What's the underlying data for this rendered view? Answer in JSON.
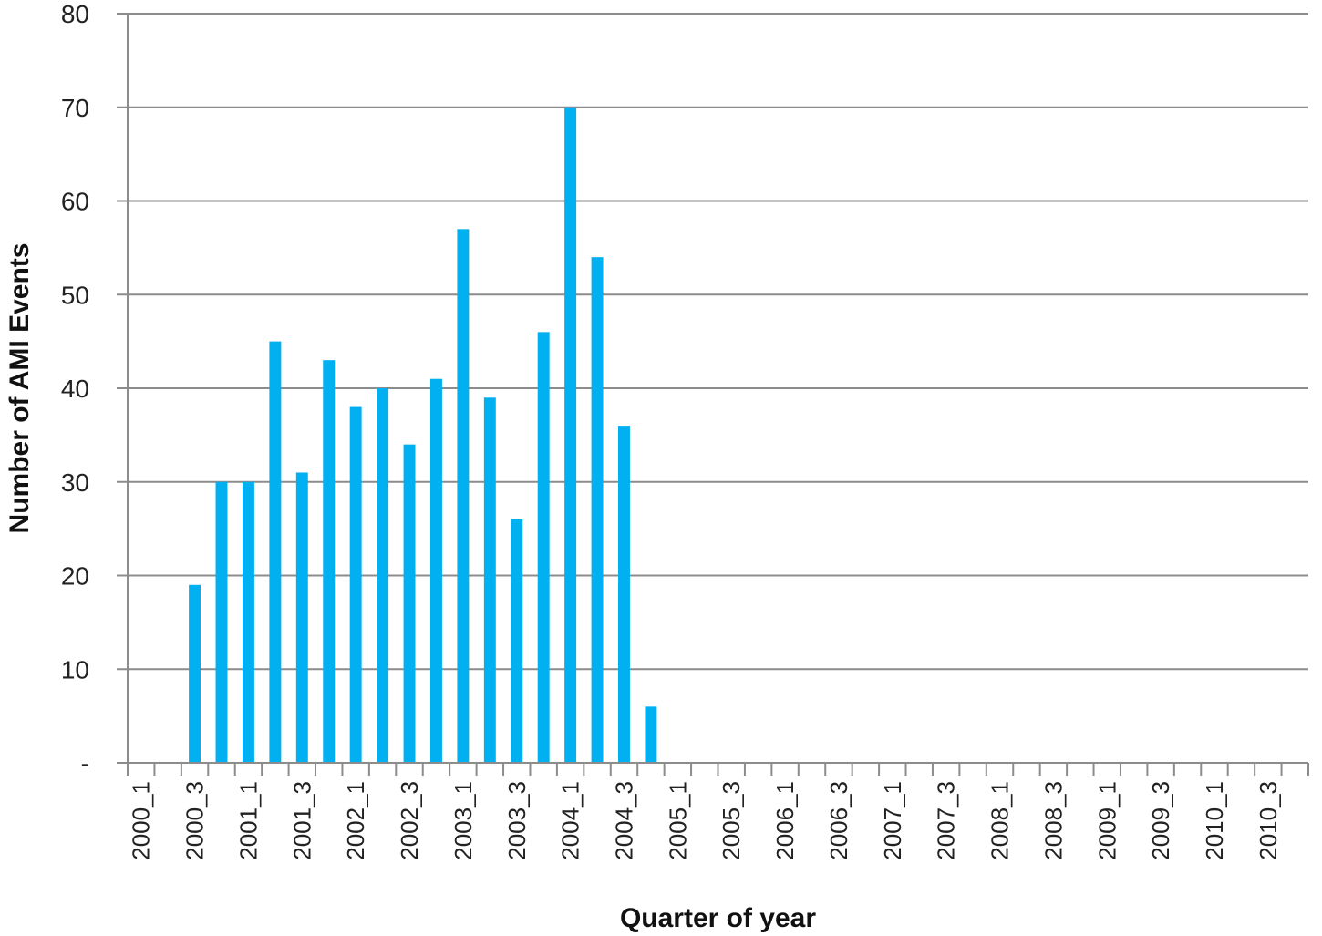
{
  "chart_data": {
    "type": "bar",
    "xlabel": "Quarter of year",
    "ylabel": "Number of AMI Events",
    "ylim": [
      0,
      80
    ],
    "yticks": [
      0,
      10,
      20,
      30,
      40,
      50,
      60,
      70,
      80
    ],
    "ytick_labels": [
      "-",
      "10",
      "20",
      "30",
      "40",
      "50",
      "60",
      "70",
      "80"
    ],
    "grid": true,
    "legend": "none",
    "bar_color": "#00B0F0",
    "categories": [
      "2000_1",
      "2000_2",
      "2000_3",
      "2000_4",
      "2001_1",
      "2001_2",
      "2001_3",
      "2001_4",
      "2002_1",
      "2002_2",
      "2002_3",
      "2002_4",
      "2003_1",
      "2003_2",
      "2003_3",
      "2003_4",
      "2004_1",
      "2004_2",
      "2004_3",
      "2004_4",
      "2005_1",
      "2005_2",
      "2005_3",
      "2005_4",
      "2006_1",
      "2006_2",
      "2006_3",
      "2006_4",
      "2007_1",
      "2007_2",
      "2007_3",
      "2007_4",
      "2008_1",
      "2008_2",
      "2008_3",
      "2008_4",
      "2009_1",
      "2009_2",
      "2009_3",
      "2009_4",
      "2010_1",
      "2010_2",
      "2010_3",
      "2010_4"
    ],
    "visible_category_labels": [
      "2000_1",
      "2000_3",
      "2001_1",
      "2001_3",
      "2002_1",
      "2002_3",
      "2003_1",
      "2003_3",
      "2004_1",
      "2004_3",
      "2005_1",
      "2005_3",
      "2006_1",
      "2006_3",
      "2007_1",
      "2007_3",
      "2008_1",
      "2008_3",
      "2009_1",
      "2009_3",
      "2010_1",
      "2010_3"
    ],
    "values": [
      0,
      0,
      19,
      30,
      30,
      45,
      31,
      43,
      38,
      40,
      34,
      41,
      57,
      39,
      26,
      46,
      70,
      54,
      36,
      6,
      0,
      0,
      0,
      0,
      0,
      0,
      0,
      0,
      0,
      0,
      0,
      0,
      0,
      0,
      0,
      0,
      0,
      0,
      0,
      0,
      0,
      0,
      0,
      0
    ]
  }
}
